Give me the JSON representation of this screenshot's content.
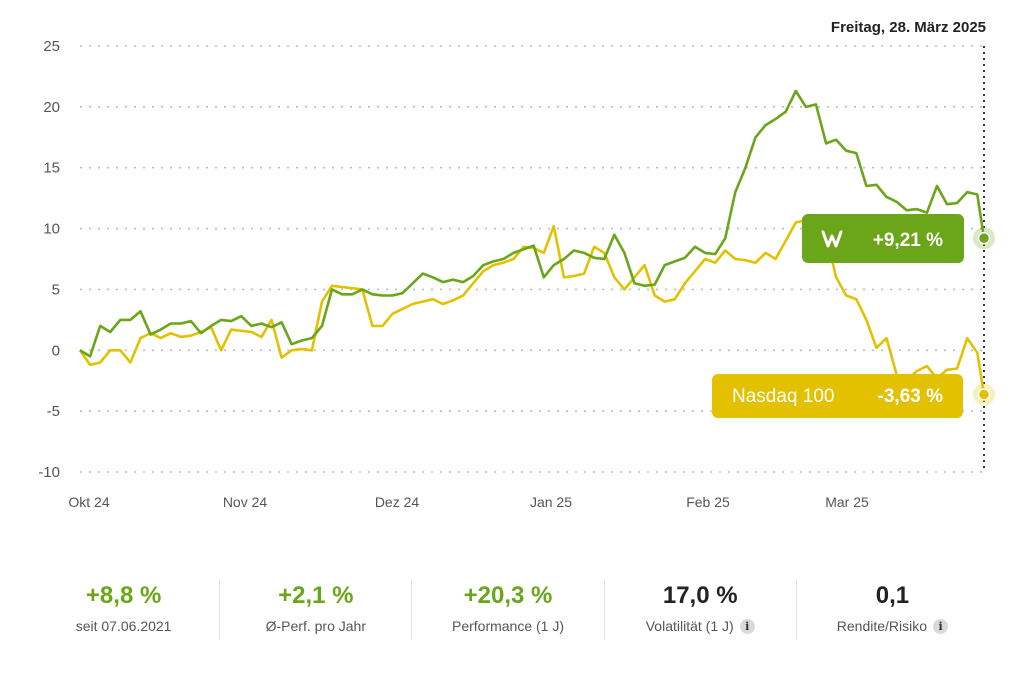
{
  "chart_data": {
    "type": "line",
    "date_label": "Freitag, 28. März 2025",
    "ylim": [
      -10,
      25
    ],
    "yticks": [
      "25",
      "20",
      "15",
      "10",
      "5",
      "0",
      "-5",
      "-10"
    ],
    "grid": true,
    "x_tick_labels": [
      "Okt 24",
      "Nov 24",
      "Dez 24",
      "Jan 25",
      "Feb 25",
      "Mar 25"
    ],
    "series": [
      {
        "name": "",
        "color": "#6aa51a",
        "badge_icon": "w-logo-icon",
        "badge_value": "+9,21 %",
        "points": [
          [
            0,
            0
          ],
          [
            3,
            -0.5
          ],
          [
            6,
            2
          ],
          [
            9,
            1.5
          ],
          [
            12,
            2.5
          ],
          [
            15,
            2.5
          ],
          [
            18,
            3.2
          ],
          [
            21,
            1.3
          ],
          [
            24,
            1.7
          ],
          [
            27,
            2.2
          ],
          [
            30,
            2.2
          ],
          [
            33,
            2.4
          ],
          [
            36,
            1.4
          ],
          [
            39,
            2
          ],
          [
            42,
            2.5
          ],
          [
            45,
            2.4
          ],
          [
            48,
            2.8
          ],
          [
            51,
            2
          ],
          [
            54,
            2.2
          ],
          [
            57,
            1.9
          ],
          [
            60,
            2.3
          ],
          [
            63,
            0.5
          ],
          [
            66,
            0.8
          ],
          [
            69,
            1
          ],
          [
            72,
            2
          ],
          [
            75,
            5
          ],
          [
            78,
            4.6
          ],
          [
            81,
            4.6
          ],
          [
            84,
            5
          ],
          [
            87,
            4.6
          ],
          [
            90,
            4.5
          ],
          [
            93,
            4.5
          ],
          [
            96,
            4.7
          ],
          [
            99,
            5.5
          ],
          [
            102,
            6.3
          ],
          [
            105,
            6
          ],
          [
            108,
            5.6
          ],
          [
            111,
            5.8
          ],
          [
            114,
            5.6
          ],
          [
            117,
            6.1
          ],
          [
            120,
            7
          ],
          [
            123,
            7.3
          ],
          [
            126,
            7.5
          ],
          [
            129,
            8
          ],
          [
            132,
            8.3
          ],
          [
            135,
            8.6
          ],
          [
            138,
            6
          ],
          [
            141,
            7
          ],
          [
            144,
            7.5
          ],
          [
            147,
            8.2
          ],
          [
            150,
            8
          ],
          [
            153,
            7.6
          ],
          [
            156,
            7.5
          ],
          [
            159,
            9.5
          ],
          [
            162,
            8
          ],
          [
            165,
            5.5
          ],
          [
            168,
            5.3
          ],
          [
            171,
            5.4
          ],
          [
            174,
            7
          ],
          [
            177,
            7.3
          ],
          [
            180,
            7.6
          ],
          [
            183,
            8.5
          ],
          [
            186,
            8
          ],
          [
            189,
            7.9
          ],
          [
            192,
            9.2
          ],
          [
            195,
            13
          ],
          [
            198,
            15
          ],
          [
            201,
            17.5
          ],
          [
            204,
            18.5
          ],
          [
            207,
            19
          ],
          [
            210,
            19.6
          ],
          [
            213,
            21.3
          ],
          [
            216,
            20
          ],
          [
            219,
            20.2
          ],
          [
            222,
            17
          ],
          [
            225,
            17.3
          ],
          [
            228,
            16.4
          ],
          [
            231,
            16.2
          ],
          [
            234,
            13.5
          ],
          [
            237,
            13.6
          ],
          [
            240,
            12.6
          ],
          [
            243,
            12.2
          ],
          [
            246,
            11.5
          ],
          [
            249,
            11.6
          ],
          [
            252,
            11.3
          ],
          [
            255,
            13.5
          ],
          [
            258,
            12
          ],
          [
            261,
            12.1
          ],
          [
            264,
            13
          ],
          [
            267,
            12.8
          ],
          [
            269,
            9.21
          ]
        ]
      },
      {
        "name": "Nasdaq 100",
        "color": "#e3c100",
        "badge_value": "-3,63 %",
        "points": [
          [
            0,
            0
          ],
          [
            3,
            -1.2
          ],
          [
            6,
            -1
          ],
          [
            9,
            0
          ],
          [
            12,
            0
          ],
          [
            15,
            -1
          ],
          [
            18,
            1
          ],
          [
            21,
            1.4
          ],
          [
            24,
            1
          ],
          [
            27,
            1.4
          ],
          [
            30,
            1.1
          ],
          [
            33,
            1.2
          ],
          [
            36,
            1.5
          ],
          [
            39,
            1.9
          ],
          [
            42,
            0
          ],
          [
            45,
            1.7
          ],
          [
            48,
            1.6
          ],
          [
            51,
            1.5
          ],
          [
            54,
            1.1
          ],
          [
            57,
            2.5
          ],
          [
            60,
            -0.6
          ],
          [
            63,
            0
          ],
          [
            66,
            0.1
          ],
          [
            69,
            0
          ],
          [
            72,
            4
          ],
          [
            75,
            5.3
          ],
          [
            78,
            5.2
          ],
          [
            81,
            5.1
          ],
          [
            84,
            5
          ],
          [
            87,
            2
          ],
          [
            90,
            2
          ],
          [
            93,
            3
          ],
          [
            96,
            3.4
          ],
          [
            99,
            3.8
          ],
          [
            102,
            4
          ],
          [
            105,
            4.2
          ],
          [
            108,
            3.8
          ],
          [
            111,
            4.1
          ],
          [
            114,
            4.5
          ],
          [
            117,
            5.5
          ],
          [
            120,
            6.5
          ],
          [
            123,
            7
          ],
          [
            126,
            7.2
          ],
          [
            129,
            7.5
          ],
          [
            132,
            8.5
          ],
          [
            135,
            8.4
          ],
          [
            138,
            8
          ],
          [
            141,
            10.2
          ],
          [
            144,
            6
          ],
          [
            147,
            6.1
          ],
          [
            150,
            6.3
          ],
          [
            153,
            8.5
          ],
          [
            156,
            8
          ],
          [
            159,
            6
          ],
          [
            162,
            5
          ],
          [
            165,
            6
          ],
          [
            168,
            7
          ],
          [
            171,
            4.5
          ],
          [
            174,
            4
          ],
          [
            177,
            4.2
          ],
          [
            180,
            5.5
          ],
          [
            183,
            6.5
          ],
          [
            186,
            7.5
          ],
          [
            189,
            7.2
          ],
          [
            192,
            8.2
          ],
          [
            195,
            7.5
          ],
          [
            198,
            7.4
          ],
          [
            201,
            7.2
          ],
          [
            204,
            8
          ],
          [
            207,
            7.5
          ],
          [
            210,
            9
          ],
          [
            213,
            10.5
          ],
          [
            216,
            10.7
          ],
          [
            219,
            10.3
          ],
          [
            222,
            9.5
          ],
          [
            225,
            6
          ],
          [
            228,
            4.5
          ],
          [
            231,
            4.2
          ],
          [
            234,
            2.5
          ],
          [
            237,
            0.2
          ],
          [
            240,
            1
          ],
          [
            243,
            -2
          ],
          [
            246,
            -2.5
          ],
          [
            249,
            -1.7
          ],
          [
            252,
            -1.3
          ],
          [
            255,
            -2.3
          ],
          [
            258,
            -1.6
          ],
          [
            261,
            -1.5
          ],
          [
            264,
            1
          ],
          [
            267,
            -0.2
          ],
          [
            269,
            -3.63
          ]
        ]
      }
    ]
  },
  "stats": [
    {
      "value": "+8,8 %",
      "label": "seit 07.06.2021",
      "tone": "pos",
      "info": false
    },
    {
      "value": "+2,1 %",
      "label": "Ø-Perf. pro Jahr",
      "tone": "pos",
      "info": false
    },
    {
      "value": "+20,3 %",
      "label": "Performance (1 J)",
      "tone": "pos",
      "info": false
    },
    {
      "value": "17,0 %",
      "label": "Volatilität (1 J)",
      "tone": "neu",
      "info": true
    },
    {
      "value": "0,1",
      "label": "Rendite/Risiko",
      "tone": "neu",
      "info": true
    }
  ]
}
